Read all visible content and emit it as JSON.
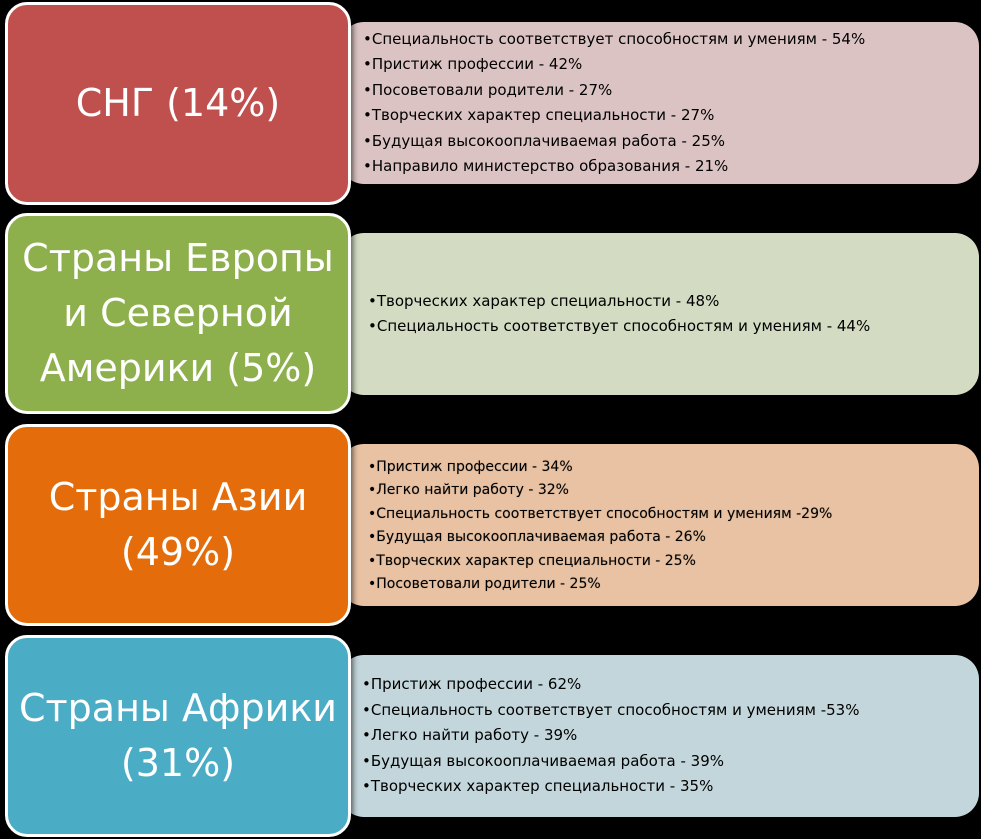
{
  "colors": {
    "background": "#000000",
    "cis": "#c0504d",
    "cis_detail": "#dbc3c3",
    "europe": "#8db04d",
    "europe_detail": "#d3dbc3",
    "asia": "#e46c0a",
    "asia_detail": "#e8c2a3",
    "africa": "#4bacc6",
    "africa_detail": "#c3d6db"
  },
  "bullet": "•",
  "groups": [
    {
      "label": "СНГ (14%)",
      "items": [
        "Специальность соответствует способностям и умениям - 54%",
        "Пристиж профессии - 42%",
        "Посоветовали родители - 27%",
        "Творческих характер специальности - 27%",
        "Будущая высокооплачиваемая работа - 25%",
        "Направило министерство  образования - 21%"
      ]
    },
    {
      "label": "Страны Европы\nи Северной\nАмерики (5%)",
      "items": [
        "Творческих характер специальности - 48%",
        "Специальность соответствует способностям и умениям - 44%"
      ]
    },
    {
      "label": "Страны Азии\n(49%)",
      "items": [
        "Пристиж профессии - 34%",
        "Легко найти работу - 32%",
        "Специальность соответствует способностям и  умениям -29%",
        "Будущая высокооплачиваемая работа - 26%",
        "Творческих характер специальности  - 25%",
        "Посоветовали родители  - 25%"
      ]
    },
    {
      "label": "Страны Африки\n(31%)",
      "items": [
        "Пристиж профессии - 62%",
        "Специальность соответствует способностям и умениям -53%",
        "Легко найти работу - 39%",
        "Будущая высокооплачиваемая работа - 39%",
        "Творческих характер специальности - 35%"
      ]
    }
  ]
}
